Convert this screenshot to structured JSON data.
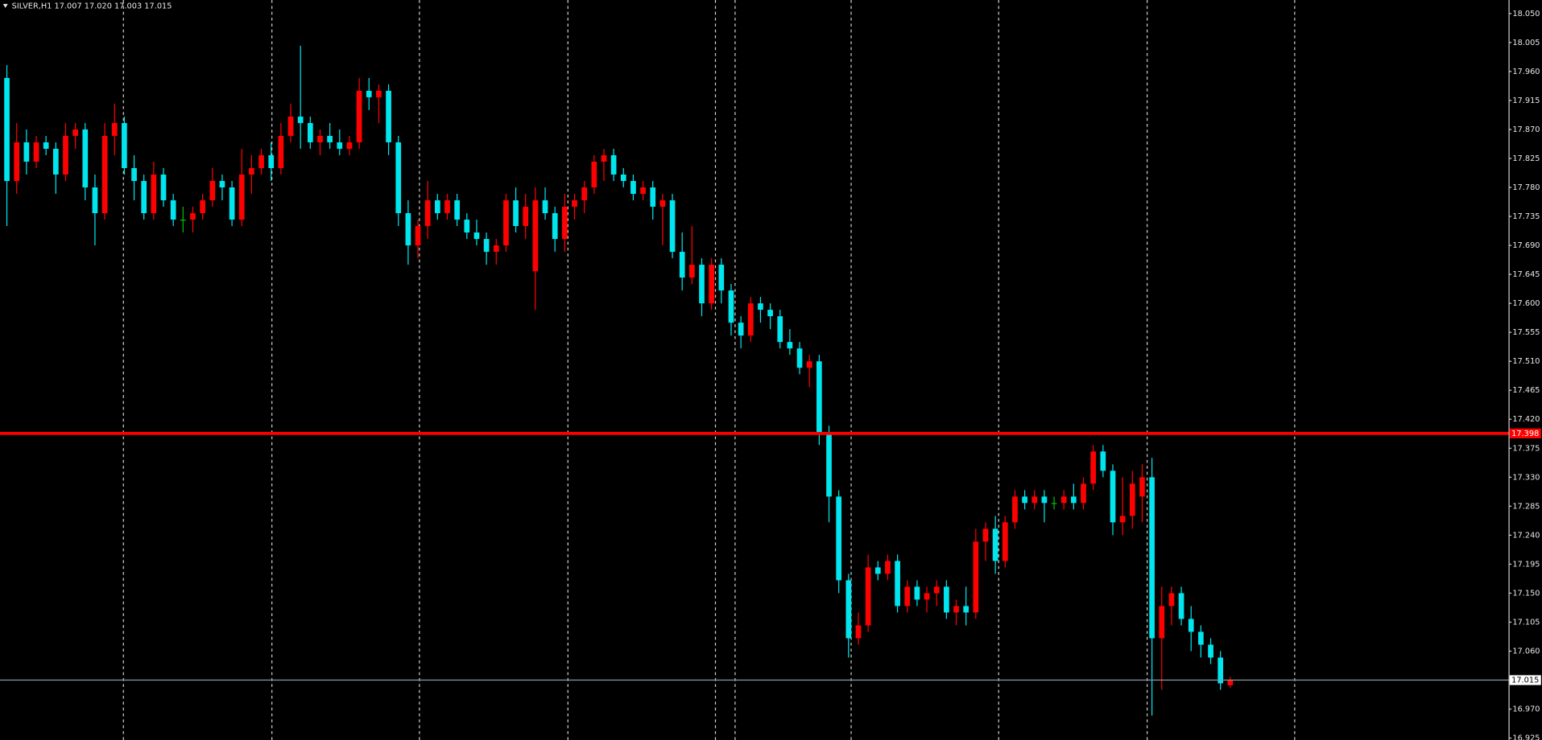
{
  "chart_data": {
    "type": "candlestick",
    "title": "SILVER,H1  17.007 17.020 17.003 17.015",
    "up_color": "#ff0000",
    "down_color": "#00e5ee",
    "doji_color": "#00c000",
    "ylim": [
      16.922,
      18.071
    ],
    "yticks": [
      16.925,
      {
        "value": 16.97,
        "label": "16.970"
      },
      17.015,
      {
        "value": 17.06,
        "label": "17.060"
      },
      17.105,
      {
        "value": 17.15,
        "label": "17.150"
      },
      17.195,
      {
        "value": 17.24,
        "label": "17.240"
      },
      17.285,
      {
        "value": 17.33,
        "label": "17.330"
      },
      17.375,
      {
        "value": 17.42,
        "label": "17.420"
      },
      17.465,
      {
        "value": 17.51,
        "label": "17.510"
      },
      17.555,
      {
        "value": 17.6,
        "label": "17.600"
      },
      17.645,
      {
        "value": 17.69,
        "label": "17.690"
      },
      17.735,
      {
        "value": 17.78,
        "label": "17.780"
      },
      17.825,
      {
        "value": 17.87,
        "label": "17.870"
      },
      17.915,
      {
        "value": 17.96,
        "label": "17.960"
      },
      18.005,
      {
        "value": 18.05,
        "label": "18.050"
      }
    ],
    "levels": [
      {
        "value": 17.398,
        "color": "#ff0000"
      },
      {
        "value": 17.015,
        "color": "#8a97a6"
      }
    ],
    "open": [
      17.95,
      17.79,
      17.85,
      17.82,
      17.85,
      17.84,
      17.8,
      17.86,
      17.87,
      17.78,
      17.74,
      17.86,
      17.88,
      17.81,
      17.79,
      17.74,
      17.8,
      17.76,
      17.73,
      17.73,
      17.74,
      17.76,
      17.79,
      17.78,
      17.73,
      17.8,
      17.81,
      17.83,
      17.81,
      17.86,
      17.89,
      17.88,
      17.85,
      17.86,
      17.85,
      17.84,
      17.85,
      17.93,
      17.92,
      17.93,
      17.85,
      17.74,
      17.69,
      17.72,
      17.76,
      17.74,
      17.76,
      17.73,
      17.71,
      17.7,
      17.68,
      17.69,
      17.76,
      17.72,
      17.65,
      17.76,
      17.74,
      17.7,
      17.75,
      17.76,
      17.78,
      17.82,
      17.83,
      17.8,
      17.79,
      17.77,
      17.78,
      17.75,
      17.76,
      17.68,
      17.64,
      17.66,
      17.6,
      17.66,
      17.62,
      17.57,
      17.55,
      17.6,
      17.59,
      17.58,
      17.54,
      17.53,
      17.5,
      17.51,
      17.4,
      17.3,
      17.17,
      17.08,
      17.1,
      17.19,
      17.18,
      17.2,
      17.13,
      17.16,
      17.14,
      17.15,
      17.16,
      17.12,
      17.13,
      17.12,
      17.23,
      17.25,
      17.2,
      17.26,
      17.3,
      17.29,
      17.3,
      17.29,
      17.29,
      17.3,
      17.29,
      17.32,
      17.37,
      17.34,
      17.26,
      17.27,
      17.3,
      17.33,
      17.08,
      17.13,
      17.15,
      17.11,
      17.09,
      17.07,
      17.05,
      17.007
    ],
    "high": [
      17.97,
      17.88,
      17.87,
      17.86,
      17.86,
      17.85,
      17.88,
      17.88,
      17.88,
      17.8,
      17.88,
      17.91,
      17.89,
      17.83,
      17.8,
      17.82,
      17.81,
      17.77,
      17.75,
      17.75,
      17.77,
      17.81,
      17.8,
      17.79,
      17.84,
      17.83,
      17.84,
      17.85,
      17.88,
      17.91,
      18.0,
      17.89,
      17.87,
      17.88,
      17.87,
      17.86,
      17.95,
      17.95,
      17.94,
      17.94,
      17.86,
      17.76,
      17.73,
      17.79,
      17.77,
      17.77,
      17.77,
      17.74,
      17.73,
      17.71,
      17.7,
      17.77,
      17.78,
      17.77,
      17.78,
      17.78,
      17.75,
      17.77,
      17.77,
      17.79,
      17.83,
      17.84,
      17.84,
      17.81,
      17.8,
      17.79,
      17.79,
      17.77,
      17.77,
      17.71,
      17.72,
      17.67,
      17.67,
      17.67,
      17.63,
      17.58,
      17.61,
      17.61,
      17.6,
      17.59,
      17.56,
      17.54,
      17.52,
      17.52,
      17.41,
      17.31,
      17.18,
      17.12,
      17.21,
      17.2,
      17.21,
      17.21,
      17.17,
      17.17,
      17.16,
      17.17,
      17.17,
      17.14,
      17.16,
      17.25,
      17.26,
      17.27,
      17.27,
      17.31,
      17.31,
      17.31,
      17.31,
      17.3,
      17.31,
      17.32,
      17.33,
      17.38,
      17.38,
      17.35,
      17.33,
      17.34,
      17.35,
      17.36,
      17.16,
      17.16,
      17.16,
      17.13,
      17.1,
      17.08,
      17.06,
      17.02
    ],
    "low": [
      17.72,
      17.77,
      17.8,
      17.81,
      17.83,
      17.77,
      17.79,
      17.84,
      17.76,
      17.69,
      17.73,
      17.83,
      17.8,
      17.76,
      17.73,
      17.73,
      17.75,
      17.72,
      17.71,
      17.71,
      17.73,
      17.75,
      17.76,
      17.72,
      17.72,
      17.77,
      17.8,
      17.79,
      17.8,
      17.85,
      17.84,
      17.84,
      17.83,
      17.84,
      17.83,
      17.83,
      17.84,
      17.9,
      17.88,
      17.83,
      17.72,
      17.66,
      17.67,
      17.7,
      17.73,
      17.73,
      17.72,
      17.7,
      17.69,
      17.66,
      17.66,
      17.68,
      17.71,
      17.7,
      17.59,
      17.73,
      17.68,
      17.68,
      17.73,
      17.74,
      17.77,
      17.79,
      17.79,
      17.78,
      17.76,
      17.76,
      17.73,
      17.69,
      17.67,
      17.62,
      17.63,
      17.58,
      17.59,
      17.6,
      17.55,
      17.53,
      17.54,
      17.57,
      17.56,
      17.53,
      17.52,
      17.49,
      17.47,
      17.38,
      17.26,
      17.15,
      17.05,
      17.07,
      17.09,
      17.17,
      17.17,
      17.12,
      17.12,
      17.13,
      17.12,
      17.13,
      17.11,
      17.1,
      17.1,
      17.11,
      17.2,
      17.18,
      17.19,
      17.25,
      17.28,
      17.28,
      17.26,
      17.28,
      17.28,
      17.28,
      17.28,
      17.31,
      17.33,
      17.24,
      17.24,
      17.25,
      17.26,
      16.96,
      17.0,
      17.1,
      17.1,
      17.06,
      17.05,
      17.04,
      17.0,
      17.003
    ],
    "close": [
      17.79,
      17.85,
      17.82,
      17.85,
      17.84,
      17.8,
      17.86,
      17.87,
      17.78,
      17.74,
      17.86,
      17.88,
      17.81,
      17.79,
      17.74,
      17.8,
      17.76,
      17.73,
      17.73,
      17.74,
      17.76,
      17.79,
      17.78,
      17.73,
      17.8,
      17.81,
      17.83,
      17.81,
      17.86,
      17.89,
      17.88,
      17.85,
      17.86,
      17.85,
      17.84,
      17.85,
      17.93,
      17.92,
      17.93,
      17.85,
      17.74,
      17.69,
      17.72,
      17.76,
      17.74,
      17.76,
      17.73,
      17.71,
      17.7,
      17.68,
      17.69,
      17.76,
      17.72,
      17.75,
      17.76,
      17.74,
      17.7,
      17.75,
      17.76,
      17.78,
      17.82,
      17.83,
      17.8,
      17.79,
      17.77,
      17.78,
      17.75,
      17.76,
      17.68,
      17.64,
      17.66,
      17.6,
      17.66,
      17.62,
      17.57,
      17.55,
      17.6,
      17.59,
      17.58,
      17.54,
      17.53,
      17.5,
      17.51,
      17.4,
      17.3,
      17.17,
      17.08,
      17.1,
      17.19,
      17.18,
      17.2,
      17.13,
      17.16,
      17.14,
      17.15,
      17.16,
      17.12,
      17.13,
      17.12,
      17.23,
      17.25,
      17.2,
      17.26,
      17.3,
      17.29,
      17.3,
      17.29,
      17.29,
      17.3,
      17.29,
      17.32,
      17.37,
      17.34,
      17.26,
      17.27,
      17.32,
      17.33,
      17.08,
      17.13,
      17.15,
      17.11,
      17.09,
      17.07,
      17.05,
      17.01,
      17.015
    ]
  }
}
